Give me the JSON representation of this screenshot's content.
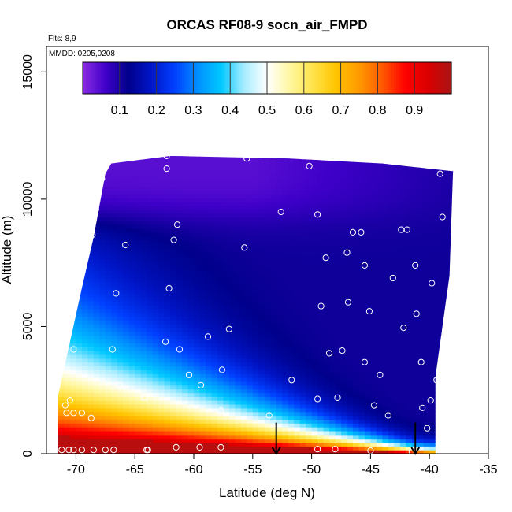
{
  "chart_data": {
    "type": "heatmap",
    "title": "ORCAS RF08-9 socn_air_FMPD",
    "xlabel": "Latitude (deg N)",
    "ylabel": "Altitude (m)",
    "xlim": [
      -72.5,
      -35
    ],
    "ylim": [
      0,
      16000
    ],
    "xticks": [
      -70,
      -65,
      -60,
      -55,
      -50,
      -45,
      -40,
      -35
    ],
    "yticks": [
      0,
      5000,
      10000,
      15000
    ],
    "annotations": {
      "flights": "Flts: 8,9",
      "dates": "MMDD: 0205,0208"
    },
    "colorbar": {
      "range": [
        0,
        1
      ],
      "ticks": [
        0.1,
        0.2,
        0.3,
        0.4,
        0.5,
        0.6,
        0.7,
        0.8,
        0.9
      ],
      "colors": [
        "#8a2be2",
        "#3f00c9",
        "#00008b",
        "#0016c9",
        "#0040ff",
        "#0090ff",
        "#00c8ff",
        "#a6ecff",
        "#ffffff",
        "#fff7a0",
        "#ffe24a",
        "#ffc400",
        "#ff9900",
        "#ff5a00",
        "#ff0000",
        "#d90000",
        "#aa1414"
      ]
    },
    "domain_outline": [
      [
        -71.5,
        0
      ],
      [
        -71.5,
        2300
      ],
      [
        -69.5,
        6500
      ],
      [
        -68.5,
        8500
      ],
      [
        -67.5,
        11000
      ],
      [
        -67,
        11400
      ],
      [
        -62,
        11700
      ],
      [
        -52,
        11600
      ],
      [
        -44,
        11400
      ],
      [
        -38,
        11100
      ],
      [
        -38.3,
        7000
      ],
      [
        -39.5,
        3000
      ],
      [
        -39.5,
        0
      ]
    ],
    "field_model": {
      "bottom_layer_fmpd": 0.98,
      "bottom_layer_top_m_at": [
        [
          -71.5,
          700
        ],
        [
          -40,
          0
        ]
      ],
      "value_at_top": 0.04,
      "description": "FMPD near 1.0 in the lowest boundary layer, decreasing with altitude, high values extending up to ~4500 m near -70 deg N, minimum (~0.1) at 6000-9000 m, ~0.05 above 10000 m"
    },
    "sample_points": [
      [
        -71.2,
        150
      ],
      [
        -70.6,
        150
      ],
      [
        -70.2,
        150
      ],
      [
        -69.5,
        150
      ],
      [
        -68.5,
        150
      ],
      [
        -67.5,
        150
      ],
      [
        -66.8,
        150
      ],
      [
        -64,
        150
      ],
      [
        -63.9,
        150
      ],
      [
        -61.5,
        250
      ],
      [
        -59.5,
        250
      ],
      [
        -57.7,
        250
      ],
      [
        -49.5,
        180
      ],
      [
        -48,
        180
      ],
      [
        -45,
        120
      ],
      [
        -41.5,
        80
      ],
      [
        -70.8,
        1600
      ],
      [
        -70.2,
        1600
      ],
      [
        -69.5,
        1600
      ],
      [
        -68.7,
        1400
      ],
      [
        -70.5,
        2100
      ],
      [
        -70.9,
        1900
      ],
      [
        -70.2,
        4100
      ],
      [
        -66.9,
        4100
      ],
      [
        -66.3,
        2700
      ],
      [
        -57.7,
        1700
      ],
      [
        -53.6,
        1500
      ],
      [
        -49.5,
        2150
      ],
      [
        -47.8,
        2200
      ],
      [
        -44.7,
        1900
      ],
      [
        -43.5,
        1500
      ],
      [
        -40.6,
        1800
      ],
      [
        -40.2,
        1000
      ],
      [
        -39.9,
        2100
      ],
      [
        -39.4,
        2900
      ],
      [
        -64.2,
        2200
      ],
      [
        -60.4,
        3100
      ],
      [
        -59.4,
        2700
      ],
      [
        -57.6,
        3300
      ],
      [
        -51.7,
        2900
      ],
      [
        -48.5,
        3950
      ],
      [
        -47.4,
        4050
      ],
      [
        -45.5,
        3600
      ],
      [
        -44.2,
        3100
      ],
      [
        -40.7,
        3600
      ],
      [
        -62.4,
        4400
      ],
      [
        -61.2,
        4100
      ],
      [
        -58.8,
        4600
      ],
      [
        -57,
        4900
      ],
      [
        -49.2,
        5800
      ],
      [
        -46.9,
        5950
      ],
      [
        -45.1,
        5600
      ],
      [
        -42.2,
        4950
      ],
      [
        -41.1,
        5500
      ],
      [
        -39.8,
        6700
      ],
      [
        -66.6,
        6300
      ],
      [
        -62.1,
        6500
      ],
      [
        -48.8,
        7700
      ],
      [
        -47,
        7900
      ],
      [
        -45.5,
        7400
      ],
      [
        -43.1,
        6900
      ],
      [
        -41.2,
        7400
      ],
      [
        -70.1,
        7100
      ],
      [
        -68.6,
        8600
      ],
      [
        -65.8,
        8200
      ],
      [
        -61.7,
        8400
      ],
      [
        -55.7,
        8100
      ],
      [
        -61.4,
        9000
      ],
      [
        -52.6,
        9500
      ],
      [
        -49.5,
        9400
      ],
      [
        -46.5,
        8700
      ],
      [
        -45.8,
        8700
      ],
      [
        -42.4,
        8800
      ],
      [
        -41.9,
        8800
      ],
      [
        -38.9,
        9300
      ],
      [
        -68.3,
        9600
      ],
      [
        -67.8,
        10800
      ],
      [
        -62.3,
        11200
      ],
      [
        -62.3,
        11700
      ],
      [
        -55.5,
        11600
      ],
      [
        -50.2,
        11300
      ],
      [
        -39.1,
        11000
      ],
      [
        -37,
        11100
      ]
    ],
    "arrows": [
      {
        "x": -53,
        "from_alt": 600,
        "to_alt": 0
      },
      {
        "x": -41.2,
        "from_alt": 600,
        "to_alt": 0
      }
    ]
  },
  "colors": {
    "axis": "#000000",
    "point": "#ffffff"
  }
}
